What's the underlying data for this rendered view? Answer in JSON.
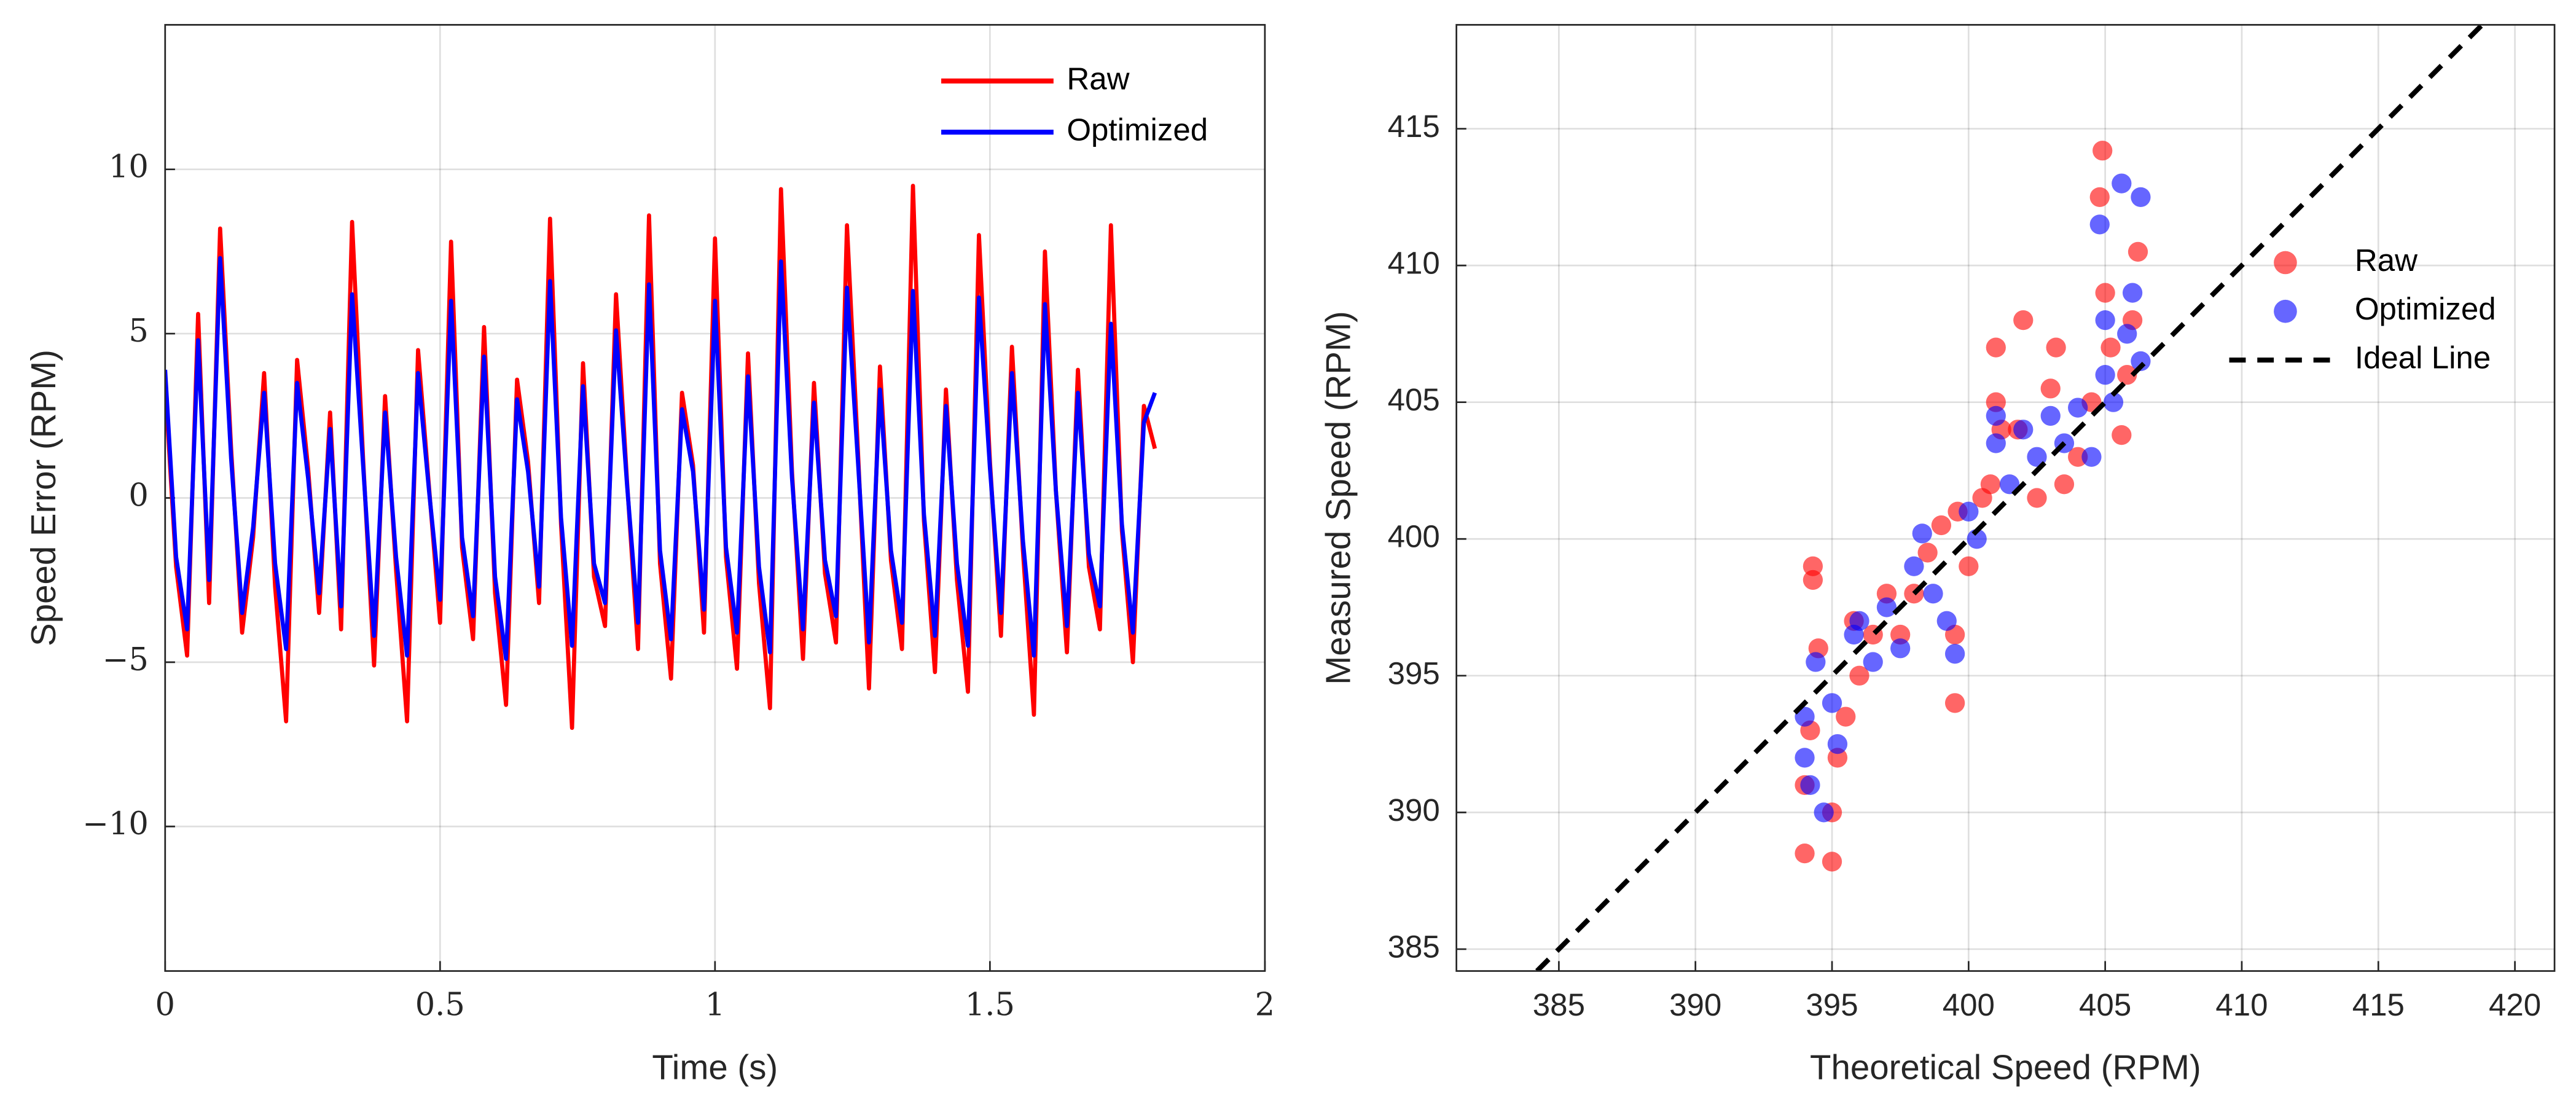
{
  "chart_data": [
    {
      "type": "line",
      "xlabel": "Time (s)",
      "ylabel": "Speed Error (RPM)",
      "xlim": [
        0,
        2
      ],
      "ylim": [
        -14.4,
        14.4
      ],
      "xticks": [
        0,
        0.5,
        1,
        1.5,
        2
      ],
      "yticks": [
        {
          "value": -10,
          "label": "−10"
        },
        {
          "value": -5,
          "label": "−5"
        },
        0,
        5,
        10
      ],
      "grid": true,
      "legend": "upper right",
      "x": [
        0,
        0.02,
        0.04,
        0.06,
        0.08,
        0.1,
        0.12,
        0.14,
        0.16,
        0.18,
        0.2,
        0.22,
        0.24,
        0.26,
        0.28,
        0.3,
        0.32,
        0.34,
        0.36,
        0.38,
        0.4,
        0.42,
        0.44,
        0.46,
        0.48,
        0.5,
        0.52,
        0.54,
        0.56,
        0.58,
        0.6,
        0.62,
        0.64,
        0.66,
        0.68,
        0.7,
        0.72,
        0.74,
        0.76,
        0.78,
        0.8,
        0.82,
        0.84,
        0.86,
        0.88,
        0.9,
        0.92,
        0.94,
        0.96,
        0.98,
        1,
        1.02,
        1.04,
        1.06,
        1.08,
        1.1,
        1.12,
        1.14,
        1.16,
        1.18,
        1.2,
        1.22,
        1.24,
        1.26,
        1.28,
        1.3,
        1.32,
        1.34,
        1.36,
        1.38,
        1.4,
        1.42,
        1.44,
        1.46,
        1.48,
        1.5,
        1.52,
        1.54,
        1.56,
        1.58,
        1.6,
        1.62,
        1.64,
        1.66,
        1.68,
        1.7,
        1.72,
        1.74,
        1.76,
        1.78,
        1.8
      ],
      "series": [
        {
          "name": "Raw",
          "color": "#ff0000",
          "values": [
            3.5,
            -2.1,
            -4.8,
            5.6,
            -3.2,
            8.2,
            1.5,
            -4.1,
            -1.2,
            3.8,
            -2.7,
            -6.8,
            4.2,
            0.9,
            -3.5,
            2.6,
            -4.0,
            8.4,
            1.2,
            -5.1,
            3.1,
            -2.2,
            -6.8,
            4.5,
            0.3,
            -3.8,
            7.8,
            -1.5,
            -4.3,
            5.2,
            -2.9,
            -6.3,
            3.6,
            1.1,
            -3.2,
            8.5,
            -0.8,
            -7.0,
            4.1,
            -2.4,
            -3.9,
            6.2,
            0.5,
            -4.6,
            8.6,
            -2.0,
            -5.5,
            3.2,
            1.0,
            -4.1,
            7.9,
            -1.8,
            -5.2,
            4.4,
            -2.6,
            -6.4,
            9.4,
            0.8,
            -4.9,
            3.5,
            -2.3,
            -4.4,
            8.3,
            1.4,
            -5.8,
            4.0,
            -1.9,
            -4.6,
            9.5,
            -0.7,
            -5.3,
            3.3,
            -2.5,
            -5.9,
            8.0,
            1.1,
            -4.2,
            4.6,
            -1.6,
            -6.6,
            7.5,
            0.2,
            -4.7,
            3.9,
            -2.1,
            -4.0,
            8.3,
            -1.0,
            -5.0,
            2.8,
            1.5
          ]
        },
        {
          "name": "Optimized",
          "color": "#0000ff",
          "values": [
            3.9,
            -1.8,
            -4.0,
            4.8,
            -2.5,
            7.3,
            1.2,
            -3.5,
            -0.9,
            3.2,
            -2.0,
            -4.6,
            3.5,
            0.6,
            -2.9,
            2.1,
            -3.3,
            6.2,
            1.0,
            -4.2,
            2.6,
            -1.8,
            -4.8,
            3.8,
            0.2,
            -3.1,
            6.0,
            -1.2,
            -3.6,
            4.3,
            -2.4,
            -4.9,
            3.0,
            0.8,
            -2.7,
            6.6,
            -0.6,
            -4.5,
            3.4,
            -2.0,
            -3.2,
            5.1,
            0.4,
            -3.8,
            6.5,
            -1.6,
            -4.3,
            2.7,
            0.8,
            -3.4,
            6.0,
            -1.5,
            -4.1,
            3.7,
            -2.1,
            -4.7,
            7.2,
            0.6,
            -4.0,
            2.9,
            -1.9,
            -3.6,
            6.4,
            1.1,
            -4.4,
            3.3,
            -1.6,
            -3.8,
            6.3,
            -0.5,
            -4.2,
            2.8,
            -2.0,
            -4.5,
            6.1,
            0.9,
            -3.5,
            3.8,
            -1.3,
            -4.8,
            5.9,
            0.2,
            -3.9,
            3.2,
            -1.7,
            -3.3,
            5.3,
            -0.8,
            -4.1,
            2.3,
            3.2
          ]
        }
      ]
    },
    {
      "type": "scatter",
      "xlabel": "Theoretical Speed (RPM)",
      "ylabel": "Measured Speed (RPM)",
      "xlim": [
        381.25,
        421.45
      ],
      "ylim": [
        384.2,
        418.8
      ],
      "xticks": [
        385,
        390,
        395,
        400,
        405,
        410,
        415,
        420
      ],
      "yticks": [
        385,
        390,
        395,
        400,
        405,
        410,
        415
      ],
      "grid": true,
      "legend": "right",
      "series": [
        {
          "name": "Raw",
          "color": "#ff0000",
          "opacity": 0.6,
          "x": [
            394,
            394,
            394.2,
            394.3,
            394.3,
            394.5,
            395,
            395,
            395.2,
            395.5,
            395.8,
            396,
            396.5,
            397,
            397.5,
            398,
            398.5,
            399,
            399.5,
            399.5,
            399.6,
            400,
            400.5,
            400.8,
            401,
            401,
            401.2,
            401.8,
            402,
            402.5,
            403,
            403.2,
            403.5,
            404,
            404.5,
            404.9,
            404.8,
            405,
            405.2,
            405.6,
            405.8,
            406,
            406.2
          ],
          "values": [
            388.5,
            391,
            393,
            399,
            398.5,
            396,
            388.2,
            390,
            392,
            393.5,
            397,
            395,
            396.5,
            398,
            396.5,
            398,
            399.5,
            400.5,
            394,
            396.5,
            401,
            399,
            401.5,
            402,
            407,
            405,
            404,
            404,
            408,
            401.5,
            405.5,
            407,
            402,
            403,
            405,
            414.2,
            412.5,
            409,
            407,
            403.8,
            406,
            408,
            410.5
          ]
        },
        {
          "name": "Optimized",
          "color": "#0000ff",
          "opacity": 0.6,
          "x": [
            394,
            394,
            394.2,
            394.4,
            394.7,
            395,
            395.2,
            395.8,
            396,
            396.5,
            397,
            397.5,
            398,
            398.3,
            398.7,
            399.2,
            399.5,
            400,
            400.3,
            401,
            401,
            401.5,
            402,
            402.5,
            403,
            403.5,
            404,
            404.5,
            404.8,
            405,
            405,
            405.3,
            405.6,
            405.8,
            406,
            406.3,
            406.3
          ],
          "values": [
            392,
            393.5,
            391,
            395.5,
            390,
            394,
            392.5,
            396.5,
            397,
            395.5,
            397.5,
            396,
            399,
            400.2,
            398,
            397,
            395.8,
            401,
            400,
            403.5,
            404.5,
            402,
            404,
            403,
            404.5,
            403.5,
            404.8,
            403,
            411.5,
            408,
            406,
            405,
            413,
            407.5,
            409,
            412.5,
            406.5
          ]
        },
        {
          "name": "Ideal Line",
          "color": "#000000",
          "line_style": "dashed",
          "x": [
            384.2,
            418.8
          ],
          "values": [
            384.2,
            418.8
          ]
        }
      ]
    }
  ]
}
